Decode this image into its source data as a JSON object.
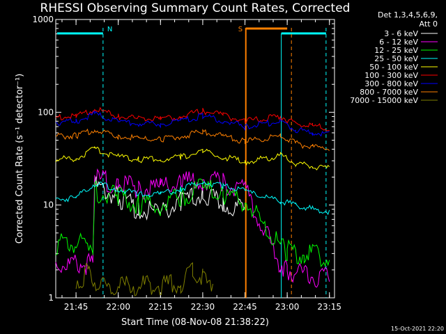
{
  "chart_data": {
    "type": "line",
    "title": "RHESSI Observing Summary Count Rates, Corrected",
    "xlabel": "Start Time (08-Nov-08 21:38:22)",
    "ylabel": "Corrected Count Rate (s⁻¹ detector⁻¹)",
    "ylog": true,
    "ylim": [
      1,
      1000
    ],
    "xlim_minutes": [
      21.63,
      23.28
    ],
    "x_ticks": [
      "21:45",
      "22:00",
      "22:15",
      "22:30",
      "22:45",
      "23:00",
      "23:15"
    ],
    "x_tick_values": [
      21.75,
      22.0,
      22.25,
      22.5,
      22.75,
      23.0,
      23.25
    ],
    "y_ticks": [
      "1",
      "10",
      "100",
      "1000"
    ],
    "y_tick_values": [
      1,
      10,
      100,
      1000
    ],
    "legend_header": [
      "Det 1,3,4,5,6,9,",
      "Att 0"
    ],
    "series": [
      {
        "name": "3 - 6 keV",
        "color": "#ffffff",
        "x": [
          21.86,
          22.0,
          22.12,
          22.25,
          22.37,
          22.5,
          22.62,
          22.72,
          22.75
        ],
        "y": [
          16,
          12,
          9,
          8,
          11,
          13,
          10,
          9,
          8
        ]
      },
      {
        "name": "6 - 12 keV",
        "color": "#ff00ff",
        "x": [
          21.63,
          21.85,
          21.86,
          22.0,
          22.12,
          22.25,
          22.37,
          22.5,
          22.62,
          22.75,
          22.96,
          23.0,
          23.1,
          23.25
        ],
        "y": [
          2.3,
          2.3,
          19,
          17,
          15,
          15,
          17,
          19,
          17,
          15,
          2.3,
          2.0,
          1.8,
          1.6
        ]
      },
      {
        "name": "12 - 25 keV",
        "color": "#00ff00",
        "x": [
          21.63,
          21.85,
          21.86,
          22.0,
          22.12,
          22.25,
          22.37,
          22.5,
          22.62,
          22.75,
          22.96,
          23.0,
          23.1,
          23.25
        ],
        "y": [
          3.8,
          3.8,
          14,
          12,
          10,
          10,
          12,
          15,
          13,
          11,
          3.6,
          3.2,
          3.0,
          2.8
        ]
      },
      {
        "name": "25 - 50 keV",
        "color": "#00ffff",
        "x": [
          21.63,
          21.75,
          21.86,
          22.0,
          22.12,
          22.25,
          22.37,
          22.5,
          22.62,
          22.75,
          22.96,
          23.05,
          23.15,
          23.25
        ],
        "y": [
          11.5,
          12,
          17,
          15,
          13,
          13,
          15,
          18,
          16,
          14,
          11,
          10,
          9,
          8.5
        ]
      },
      {
        "name": "50 - 100 keV",
        "color": "#ffff00",
        "x": [
          21.63,
          21.75,
          21.86,
          22.0,
          22.12,
          22.25,
          22.37,
          22.5,
          22.62,
          22.75,
          22.96,
          23.05,
          23.15,
          23.25
        ],
        "y": [
          31,
          32,
          40,
          33,
          31,
          31,
          33,
          38,
          33,
          29,
          34,
          28,
          26,
          25
        ]
      },
      {
        "name": "100 - 300 keV",
        "color": "#ff0000",
        "x": [
          21.63,
          21.75,
          21.86,
          22.0,
          22.12,
          22.25,
          22.37,
          22.5,
          22.62,
          22.75,
          22.96,
          23.05,
          23.15,
          23.25
        ],
        "y": [
          88,
          90,
          108,
          90,
          85,
          84,
          90,
          103,
          92,
          80,
          90,
          75,
          70,
          68
        ]
      },
      {
        "name": "300 - 800 keV",
        "color": "#0000ff",
        "x": [
          21.63,
          21.75,
          21.86,
          22.0,
          22.12,
          22.25,
          22.37,
          22.5,
          22.62,
          22.75,
          22.96,
          23.05,
          23.15,
          23.25
        ],
        "y": [
          78,
          80,
          96,
          80,
          75,
          74,
          80,
          91,
          81,
          70,
          80,
          65,
          60,
          58
        ]
      },
      {
        "name": "800 - 7000 keV",
        "color": "#ff8000",
        "x": [
          21.63,
          21.75,
          21.86,
          22.0,
          22.12,
          22.25,
          22.37,
          22.5,
          22.62,
          22.75,
          22.96,
          23.05,
          23.15,
          23.25
        ],
        "y": [
          55,
          56,
          65,
          55,
          52,
          51,
          55,
          62,
          55,
          48,
          55,
          46,
          42,
          40
        ]
      },
      {
        "name": "7000 - 15000 keV",
        "color": "#808000",
        "x": [
          21.75,
          21.82,
          21.9,
          22.37,
          22.44,
          22.5,
          22.56
        ],
        "y": [
          1.5,
          1.9,
          1.3,
          1.4,
          1.9,
          1.8,
          1.5
        ]
      }
    ],
    "annotations": [
      {
        "text": "N",
        "color": "#00ffff",
        "x": 21.91
      },
      {
        "text": "S",
        "color": "#ff8000",
        "x": 22.755
      }
    ]
  },
  "footer_timestamp": "15-Oct-2021 22:20"
}
